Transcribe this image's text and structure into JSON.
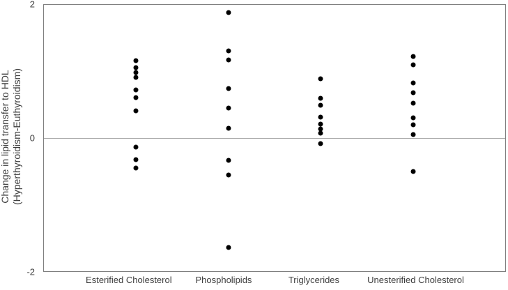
{
  "figure": {
    "y_axis_title_line1": "Change in lipid transfer to HDL",
    "y_axis_title_line2": "(Hyperthyroidism-Euthyroidism)",
    "y_tick_labels": [
      "2",
      "0",
      "-2"
    ]
  },
  "chart_data": {
    "type": "scatter",
    "title": "",
    "xlabel": "",
    "ylabel": "Change in lipid transfer to HDL (Hyperthyroidism-Euthyroidism)",
    "ylim": [
      -2,
      2
    ],
    "y_ticks": [
      2,
      0,
      -2
    ],
    "grid": false,
    "zero_reference_line": true,
    "legend": "none",
    "categories": [
      "Esterified Cholesterol",
      "Phospholipids",
      "Triglycerides",
      "Unesterified Cholesterol"
    ],
    "series": [
      {
        "name": "Esterified Cholesterol",
        "values": [
          1.16,
          1.06,
          0.98,
          0.91,
          0.72,
          0.61,
          0.41,
          -0.14,
          -0.32,
          -0.45
        ]
      },
      {
        "name": "Phospholipids",
        "values": [
          1.88,
          1.31,
          1.17,
          0.74,
          0.45,
          0.15,
          -0.34,
          -0.55,
          -1.64
        ]
      },
      {
        "name": "Triglycerides",
        "values": [
          0.89,
          0.6,
          0.49,
          0.31,
          0.21,
          0.14,
          0.07,
          -0.08
        ]
      },
      {
        "name": "Unesterified Cholesterol",
        "values": [
          1.23,
          1.1,
          0.83,
          0.68,
          0.52,
          0.3,
          0.2,
          0.05,
          -0.5
        ]
      }
    ],
    "colors": {
      "dot": "#000000",
      "frame": "#7f7f7f",
      "zero_line": "#a8a8a8",
      "text": "#3d3d3d"
    }
  }
}
